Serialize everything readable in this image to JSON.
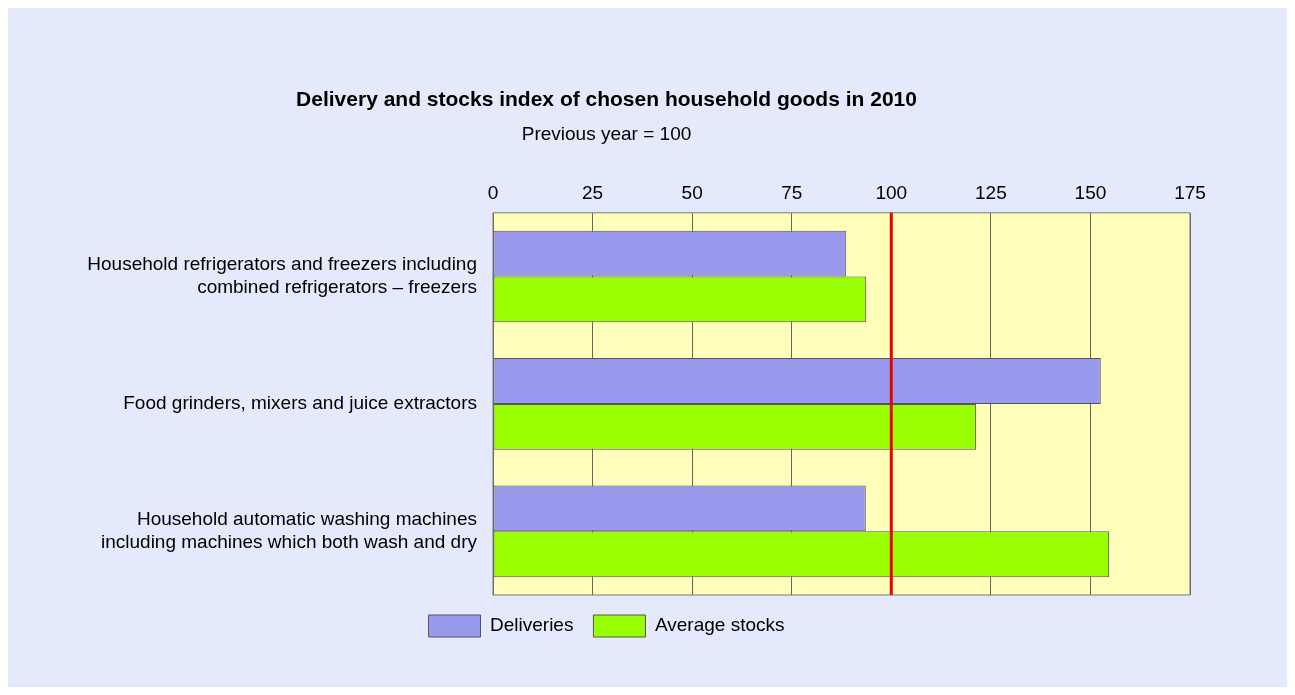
{
  "chart_data": {
    "type": "bar",
    "orientation": "horizontal",
    "title": "Delivery and stocks index of chosen household goods in 2010",
    "subtitle": "Previous year = 100",
    "categories": [
      "Household refrigerators and freezers including combined refrigerators – freezers",
      "Food grinders, mixers and juice extractors",
      "Household automatic washing machines including machines which both wash and dry"
    ],
    "series": [
      {
        "name": "Deliveries",
        "color": "#9999ee",
        "values": [
          88.7,
          152.6,
          93.6
        ]
      },
      {
        "name": "Average stocks",
        "color": "#99ff00",
        "values": [
          93.7,
          121.3,
          154.7
        ]
      }
    ],
    "xlim": [
      0,
      175
    ],
    "xticks": [
      0,
      25,
      50,
      75,
      100,
      125,
      150,
      175
    ],
    "grid": "x",
    "legend": "bottom",
    "ref_lines": [
      {
        "axis": "x",
        "value": 100,
        "color": "#ee0000"
      }
    ]
  }
}
